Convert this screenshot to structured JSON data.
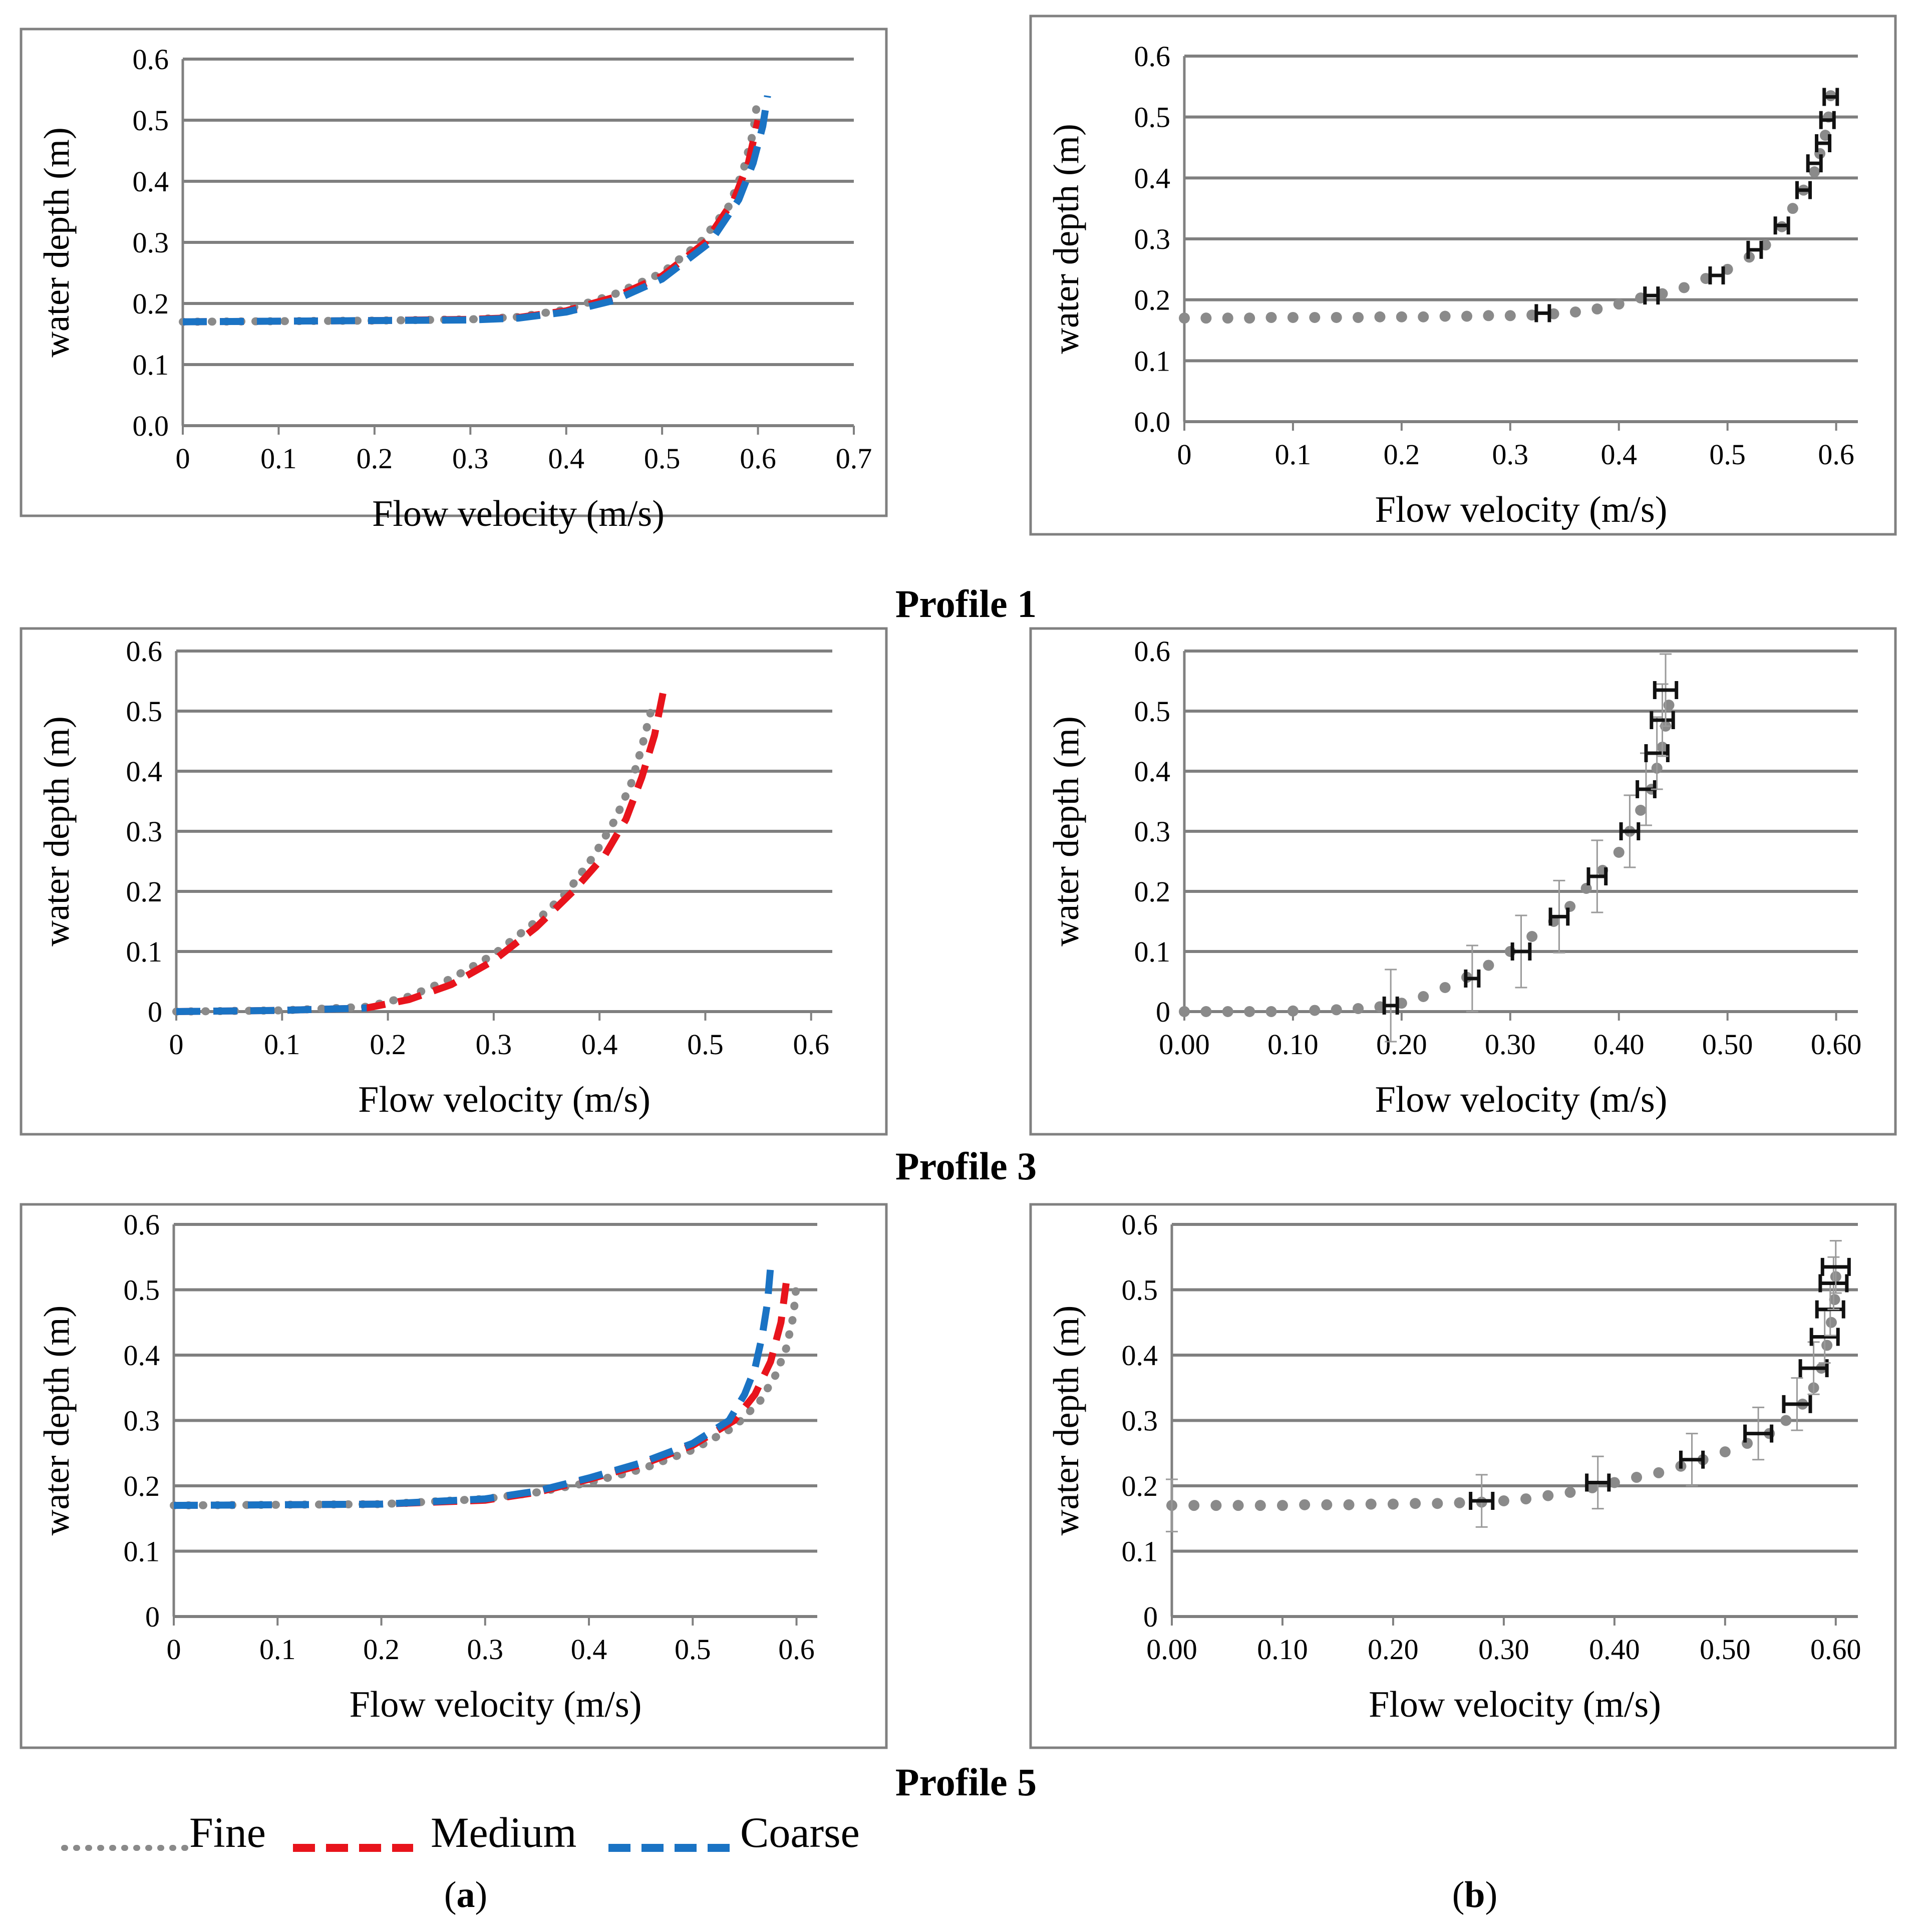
{
  "legend": {
    "items": [
      {
        "label": "Fine",
        "color": "#8a8a8a",
        "style": "dotted"
      },
      {
        "label": "Medium",
        "color": "#e8141c",
        "style": "dashed"
      },
      {
        "label": "Coarse",
        "color": "#1a73c4",
        "style": "dashed"
      }
    ]
  },
  "captions": {
    "profile1": "Profile 1",
    "profile3": "Profile 3",
    "profile5": "Profile 5",
    "panel_a": "a",
    "panel_b": "b"
  },
  "chart_data": [
    {
      "id": "p1a",
      "type": "line",
      "title": "",
      "xlabel": "Flow velocity (m/s)",
      "ylabel": "water depth (m)",
      "xlim": [
        0,
        0.7
      ],
      "ylim": [
        0,
        0.6
      ],
      "xticks": [
        "0",
        "0.1",
        "0.2",
        "0.3",
        "0.4",
        "0.5",
        "0.6",
        "0.7"
      ],
      "yticks": [
        "0.0",
        "0.1",
        "0.2",
        "0.3",
        "0.4",
        "0.5",
        "0.6"
      ],
      "series": [
        {
          "name": "Fine",
          "x": [
            0,
            0.1,
            0.2,
            0.3,
            0.35,
            0.4,
            0.45,
            0.5,
            0.54,
            0.57,
            0.585,
            0.595,
            0.6
          ],
          "y": [
            0.17,
            0.171,
            0.172,
            0.174,
            0.178,
            0.19,
            0.215,
            0.25,
            0.3,
            0.36,
            0.42,
            0.48,
            0.54
          ]
        },
        {
          "name": "Medium",
          "x": [
            0,
            0.1,
            0.2,
            0.3,
            0.35,
            0.4,
            0.45,
            0.5,
            0.545,
            0.575,
            0.59,
            0.6
          ],
          "y": [
            0.17,
            0.171,
            0.172,
            0.174,
            0.177,
            0.188,
            0.21,
            0.245,
            0.3,
            0.37,
            0.43,
            0.5
          ]
        },
        {
          "name": "Coarse",
          "x": [
            0,
            0.1,
            0.2,
            0.3,
            0.35,
            0.4,
            0.45,
            0.5,
            0.55,
            0.58,
            0.595,
            0.605,
            0.61
          ],
          "y": [
            0.17,
            0.171,
            0.172,
            0.173,
            0.176,
            0.186,
            0.205,
            0.24,
            0.3,
            0.37,
            0.43,
            0.49,
            0.54
          ]
        }
      ]
    },
    {
      "id": "p1b",
      "type": "scatter",
      "title": "",
      "xlabel": "Flow velocity (m/s)",
      "ylabel": "water depth (m)",
      "xlim": [
        0,
        0.62
      ],
      "ylim": [
        0,
        0.6
      ],
      "xticks": [
        "0",
        "0.1",
        "0.2",
        "0.3",
        "0.4",
        "0.5",
        "0.6"
      ],
      "yticks": [
        "0.0",
        "0.1",
        "0.2",
        "0.3",
        "0.4",
        "0.5",
        "0.6"
      ],
      "xtick_values": [
        0,
        0.1,
        0.2,
        0.3,
        0.4,
        0.5,
        0.6
      ],
      "series": [
        {
          "name": "Fine",
          "x": [
            0,
            0.02,
            0.04,
            0.06,
            0.08,
            0.1,
            0.12,
            0.14,
            0.16,
            0.18,
            0.2,
            0.22,
            0.24,
            0.26,
            0.28,
            0.3,
            0.32,
            0.34,
            0.36,
            0.38,
            0.4,
            0.42,
            0.44,
            0.46,
            0.48,
            0.5,
            0.52,
            0.535,
            0.55,
            0.56,
            0.57,
            0.58,
            0.585,
            0.59,
            0.593,
            0.595
          ],
          "y": [
            0.17,
            0.17,
            0.17,
            0.17,
            0.171,
            0.171,
            0.171,
            0.171,
            0.171,
            0.172,
            0.172,
            0.172,
            0.173,
            0.173,
            0.174,
            0.174,
            0.175,
            0.177,
            0.18,
            0.185,
            0.193,
            0.203,
            0.21,
            0.22,
            0.235,
            0.25,
            0.27,
            0.29,
            0.32,
            0.35,
            0.38,
            0.41,
            0.44,
            0.47,
            0.5,
            0.535
          ]
        }
      ],
      "error_bars": {
        "y": [
          0.178,
          0.207,
          0.24,
          0.282,
          0.322,
          0.38,
          0.424,
          0.457,
          0.495,
          0.533
        ],
        "x": [
          0.33,
          0.43,
          0.49,
          0.525,
          0.55,
          0.57,
          0.58,
          0.588,
          0.592,
          0.595
        ],
        "xerr": [
          0.006,
          0.006,
          0.006,
          0.006,
          0.006,
          0.006,
          0.006,
          0.006,
          0.006,
          0.006
        ]
      }
    },
    {
      "id": "p3a",
      "type": "line",
      "title": "",
      "xlabel": "Flow velocity (m/s)",
      "ylabel": "water depth (m)",
      "xlim": [
        0,
        0.62
      ],
      "ylim": [
        0,
        0.6
      ],
      "xticks": [
        "0",
        "0.1",
        "0.2",
        "0.3",
        "0.4",
        "0.5",
        "0.6"
      ],
      "yticks": [
        "0",
        "0.1",
        "0.2",
        "0.3",
        "0.4",
        "0.5",
        "0.6"
      ],
      "xtick_values": [
        0,
        0.1,
        0.2,
        0.3,
        0.4,
        0.5,
        0.6
      ],
      "series": [
        {
          "name": "Fine",
          "x": [
            0,
            0.1,
            0.18,
            0.22,
            0.26,
            0.3,
            0.34,
            0.37,
            0.395,
            0.415,
            0.43,
            0.44,
            0.45
          ],
          "y": [
            0,
            0.002,
            0.008,
            0.025,
            0.055,
            0.095,
            0.15,
            0.2,
            0.26,
            0.32,
            0.38,
            0.44,
            0.51
          ]
        },
        {
          "name": "Medium",
          "x": [
            0,
            0.1,
            0.18,
            0.22,
            0.26,
            0.3,
            0.34,
            0.375,
            0.405,
            0.425,
            0.44,
            0.452,
            0.46
          ],
          "y": [
            0,
            0.002,
            0.006,
            0.02,
            0.045,
            0.085,
            0.14,
            0.2,
            0.26,
            0.32,
            0.39,
            0.46,
            0.53
          ]
        },
        {
          "name": "Coarse",
          "x": [
            0,
            0.1,
            0.18
          ],
          "y": [
            0,
            0.002,
            0.006
          ]
        }
      ]
    },
    {
      "id": "p3b",
      "type": "scatter",
      "title": "",
      "xlabel": "Flow velocity (m/s)",
      "ylabel": "water depth (m)",
      "xlim": [
        0,
        0.62
      ],
      "ylim": [
        0,
        0.6
      ],
      "xticks": [
        "0.00",
        "0.10",
        "0.20",
        "0.30",
        "0.40",
        "0.50",
        "0.60"
      ],
      "yticks": [
        "0",
        "0.1",
        "0.2",
        "0.3",
        "0.4",
        "0.5",
        "0.6"
      ],
      "xtick_values": [
        0,
        0.1,
        0.2,
        0.3,
        0.4,
        0.5,
        0.6
      ],
      "series": [
        {
          "name": "Fine",
          "x": [
            0,
            0.02,
            0.04,
            0.06,
            0.08,
            0.1,
            0.12,
            0.14,
            0.16,
            0.18,
            0.2,
            0.22,
            0.24,
            0.26,
            0.28,
            0.3,
            0.32,
            0.34,
            0.355,
            0.37,
            0.385,
            0.4,
            0.41,
            0.42,
            0.43,
            0.435,
            0.44,
            0.443,
            0.446
          ],
          "y": [
            0,
            0,
            0,
            0,
            0,
            0.001,
            0.002,
            0.003,
            0.005,
            0.008,
            0.014,
            0.025,
            0.04,
            0.057,
            0.077,
            0.1,
            0.125,
            0.15,
            0.175,
            0.205,
            0.235,
            0.265,
            0.3,
            0.335,
            0.37,
            0.405,
            0.44,
            0.475,
            0.51
          ]
        }
      ],
      "error_bars": {
        "y": [
          0.01,
          0.055,
          0.1,
          0.158,
          0.225,
          0.3,
          0.37,
          0.43,
          0.485,
          0.535
        ],
        "x": [
          0.19,
          0.265,
          0.31,
          0.345,
          0.38,
          0.41,
          0.425,
          0.435,
          0.44,
          0.443
        ],
        "xerr": [
          0.006,
          0.006,
          0.008,
          0.008,
          0.008,
          0.008,
          0.008,
          0.01,
          0.01,
          0.01
        ],
        "yerr": [
          0.06,
          0.055,
          0.06,
          0.06,
          0.06,
          0.06,
          0.06,
          0.06,
          0.06,
          0.06
        ]
      }
    },
    {
      "id": "p5a",
      "type": "line",
      "title": "",
      "xlabel": "Flow velocity (m/s)",
      "ylabel": "water depth (m)",
      "xlim": [
        0,
        0.62
      ],
      "ylim": [
        0,
        0.6
      ],
      "xticks": [
        "0",
        "0.1",
        "0.2",
        "0.3",
        "0.4",
        "0.5",
        "0.6"
      ],
      "yticks": [
        "0",
        "0.1",
        "0.2",
        "0.3",
        "0.4",
        "0.5",
        "0.6"
      ],
      "xtick_values": [
        0,
        0.1,
        0.2,
        0.3,
        0.4,
        0.5,
        0.6
      ],
      "series": [
        {
          "name": "Fine",
          "x": [
            0,
            0.1,
            0.2,
            0.3,
            0.35,
            0.4,
            0.45,
            0.5,
            0.54,
            0.565,
            0.58,
            0.59,
            0.597,
            0.6
          ],
          "y": [
            0.17,
            0.171,
            0.172,
            0.18,
            0.19,
            0.205,
            0.225,
            0.255,
            0.29,
            0.33,
            0.37,
            0.41,
            0.46,
            0.51
          ]
        },
        {
          "name": "Medium",
          "x": [
            0,
            0.1,
            0.2,
            0.3,
            0.35,
            0.4,
            0.45,
            0.5,
            0.54,
            0.56,
            0.575,
            0.585,
            0.59
          ],
          "y": [
            0.17,
            0.171,
            0.172,
            0.178,
            0.19,
            0.21,
            0.232,
            0.262,
            0.3,
            0.34,
            0.39,
            0.45,
            0.51
          ]
        },
        {
          "name": "Coarse",
          "x": [
            0,
            0.1,
            0.2,
            0.3,
            0.35,
            0.4,
            0.45,
            0.5,
            0.535,
            0.55,
            0.56,
            0.567,
            0.572,
            0.575
          ],
          "y": [
            0.17,
            0.171,
            0.172,
            0.18,
            0.192,
            0.212,
            0.235,
            0.265,
            0.3,
            0.34,
            0.38,
            0.43,
            0.48,
            0.535
          ]
        }
      ]
    },
    {
      "id": "p5b",
      "type": "scatter",
      "title": "",
      "xlabel": "Flow velocity (m/s)",
      "ylabel": "water depth (m)",
      "xlim": [
        0,
        0.62
      ],
      "ylim": [
        0,
        0.6
      ],
      "xticks": [
        "0.00",
        "0.10",
        "0.20",
        "0.30",
        "0.40",
        "0.50",
        "0.60"
      ],
      "yticks": [
        "0",
        "0.1",
        "0.2",
        "0.3",
        "0.4",
        "0.5",
        "0.6"
      ],
      "xtick_values": [
        0,
        0.1,
        0.2,
        0.3,
        0.4,
        0.5,
        0.6
      ],
      "series": [
        {
          "name": "Fine",
          "x": [
            0,
            0.02,
            0.04,
            0.06,
            0.08,
            0.1,
            0.12,
            0.14,
            0.16,
            0.18,
            0.2,
            0.22,
            0.24,
            0.26,
            0.28,
            0.3,
            0.32,
            0.34,
            0.36,
            0.38,
            0.4,
            0.42,
            0.44,
            0.46,
            0.48,
            0.5,
            0.52,
            0.54,
            0.555,
            0.57,
            0.58,
            0.587,
            0.592,
            0.596,
            0.599,
            0.6
          ],
          "y": [
            0.17,
            0.17,
            0.17,
            0.17,
            0.17,
            0.17,
            0.171,
            0.171,
            0.171,
            0.172,
            0.172,
            0.173,
            0.173,
            0.174,
            0.175,
            0.177,
            0.18,
            0.185,
            0.19,
            0.197,
            0.205,
            0.213,
            0.22,
            0.23,
            0.24,
            0.252,
            0.265,
            0.28,
            0.3,
            0.325,
            0.35,
            0.38,
            0.415,
            0.45,
            0.485,
            0.52
          ]
        }
      ],
      "error_bars": {
        "y": [
          0.17,
          0.177,
          0.205,
          0.24,
          0.28,
          0.325,
          0.38,
          0.428,
          0.47,
          0.51,
          0.535
        ],
        "x": [
          0,
          0.28,
          0.385,
          0.47,
          0.53,
          0.565,
          0.58,
          0.59,
          0.595,
          0.598,
          0.6
        ],
        "xerr": [
          0,
          0.01,
          0.01,
          0.01,
          0.012,
          0.012,
          0.012,
          0.012,
          0.012,
          0.012,
          0.012
        ],
        "yerr": [
          0.04,
          0.04,
          0.04,
          0.04,
          0.04,
          0.04,
          0.04,
          0.04,
          0.04,
          0.04,
          0.04
        ]
      }
    }
  ]
}
